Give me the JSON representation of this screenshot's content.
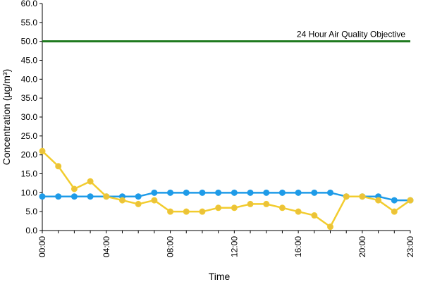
{
  "chart_data": {
    "type": "line",
    "xlabel": "Time",
    "ylabel": "Concentration (µg/m³)",
    "ylim": [
      0,
      60
    ],
    "y_ticks": [
      "0.0",
      "5.0",
      "10.0",
      "15.0",
      "20.0",
      "25.0",
      "30.0",
      "35.0",
      "40.0",
      "45.0",
      "50.0",
      "55.0",
      "60.0"
    ],
    "x_hours": [
      0,
      1,
      2,
      3,
      4,
      5,
      6,
      7,
      8,
      9,
      10,
      11,
      12,
      13,
      14,
      15,
      16,
      17,
      18,
      19,
      20,
      21,
      22,
      23
    ],
    "x_tick_labels": [
      {
        "hour": 0,
        "label": "00:00"
      },
      {
        "hour": 4,
        "label": "04:00"
      },
      {
        "hour": 8,
        "label": "08:00"
      },
      {
        "hour": 12,
        "label": "12:00"
      },
      {
        "hour": 16,
        "label": "16:00"
      },
      {
        "hour": 20,
        "label": "20:00"
      },
      {
        "hour": 23,
        "label": "23:00"
      }
    ],
    "grid": false,
    "series": [
      {
        "color": "#1E9BE8",
        "marker_color": "#1E9BE8",
        "values": [
          9,
          9,
          9,
          9,
          9,
          9,
          9,
          10,
          10,
          10,
          10,
          10,
          10,
          10,
          10,
          10,
          10,
          10,
          10,
          9,
          9,
          9,
          8,
          8
        ]
      },
      {
        "color": "#F2CC2E",
        "marker_color": "#EBC23A",
        "values": [
          21,
          17,
          11,
          13,
          9,
          8,
          7,
          8,
          5,
          5,
          5,
          6,
          6,
          7,
          7,
          6,
          5,
          4,
          1,
          9,
          9,
          8,
          5,
          8
        ]
      }
    ],
    "reference_line": {
      "value": 50,
      "label": "24 Hour Air Quality Objective",
      "color": "#1F7A1F"
    }
  }
}
